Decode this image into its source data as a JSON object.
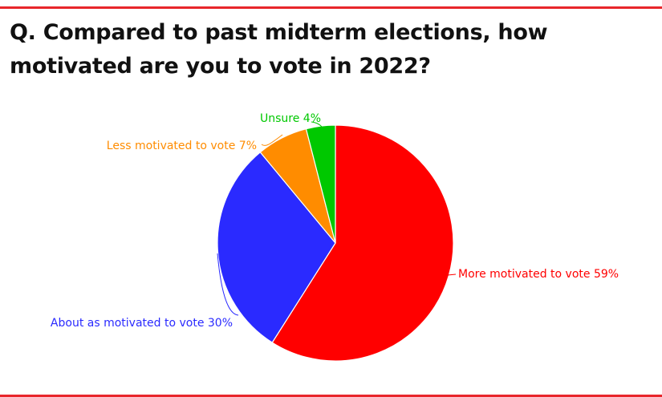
{
  "chart_data": {
    "type": "pie",
    "title": "Q. Compared to past midterm elections, how motivated are you to vote in 2022?",
    "slices": [
      {
        "label": "More motivated to vote 59%",
        "category": "More motivated to vote",
        "value": 59,
        "color": "#ff0000"
      },
      {
        "label": "About as motivated to vote 30%",
        "category": "About as motivated to vote",
        "value": 30,
        "color": "#2a2aff"
      },
      {
        "label": "Less motivated to vote 7%",
        "category": "Less motivated to vote",
        "value": 7,
        "color": "#ff8c00"
      },
      {
        "label": "Unsure 4%",
        "category": "Unsure",
        "value": 4,
        "color": "#00c800"
      }
    ],
    "start": "12 o'clock",
    "direction": "clockwise"
  },
  "colors": {
    "accent": "#e8262b",
    "slice_border": "#ffffff"
  }
}
